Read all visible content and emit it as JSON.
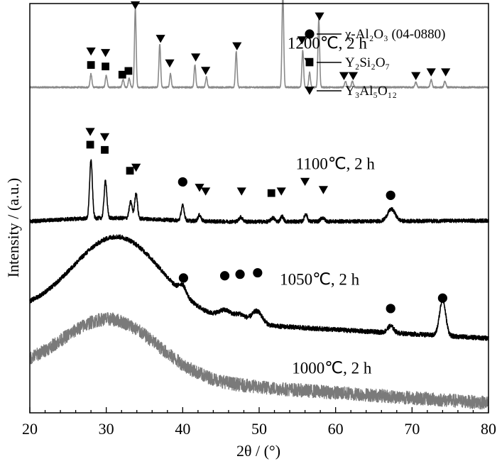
{
  "chart_data": {
    "type": "line",
    "xlabel": "2θ / (°)",
    "ylabel": "Intensity / (a.u.)",
    "xlim": [
      20,
      80
    ],
    "x_ticks": [
      20,
      30,
      40,
      50,
      60,
      70,
      80
    ],
    "y_ticks_shown": false,
    "grid": false,
    "legend_placement": "top-right",
    "legend": [
      {
        "symbol": "circle",
        "label": "χ-Al₂O₃ (04-0880)"
      },
      {
        "symbol": "square",
        "label": "Y₂Si₂O₇"
      },
      {
        "symbol": "triangle-down",
        "label": "Y₃Al₅O₁₂"
      }
    ],
    "series": [
      {
        "name": "1200℃, 2 h",
        "color": "#8a8a8a",
        "offset": 4.18,
        "baseline_level": 0.0,
        "hump": null,
        "noise": 0.01,
        "peaks": [
          {
            "x": 28.0,
            "h": 0.18,
            "w": 0.12
          },
          {
            "x": 30.0,
            "h": 0.16,
            "w": 0.12
          },
          {
            "x": 32.2,
            "h": 0.1,
            "w": 0.12
          },
          {
            "x": 33.0,
            "h": 0.12,
            "w": 0.12
          },
          {
            "x": 33.8,
            "h": 1.05,
            "w": 0.11
          },
          {
            "x": 37.0,
            "h": 0.58,
            "w": 0.11
          },
          {
            "x": 38.4,
            "h": 0.18,
            "w": 0.11
          },
          {
            "x": 41.6,
            "h": 0.3,
            "w": 0.11
          },
          {
            "x": 43.1,
            "h": 0.14,
            "w": 0.11
          },
          {
            "x": 47.0,
            "h": 0.48,
            "w": 0.11
          },
          {
            "x": 53.1,
            "h": 1.3,
            "w": 0.11
          },
          {
            "x": 55.7,
            "h": 0.5,
            "w": 0.11
          },
          {
            "x": 56.6,
            "h": 0.2,
            "w": 0.11
          },
          {
            "x": 57.8,
            "h": 0.92,
            "w": 0.11
          },
          {
            "x": 61.3,
            "h": 0.08,
            "w": 0.12
          },
          {
            "x": 62.2,
            "h": 0.08,
            "w": 0.12
          },
          {
            "x": 70.5,
            "h": 0.07,
            "w": 0.12
          },
          {
            "x": 72.5,
            "h": 0.1,
            "w": 0.12
          },
          {
            "x": 74.3,
            "h": 0.08,
            "w": 0.12
          }
        ],
        "markers": [
          {
            "x": 28.0,
            "symbol": "triangle-down",
            "level": 0.48
          },
          {
            "x": 28.0,
            "symbol": "square",
            "level": 0.3
          },
          {
            "x": 29.9,
            "symbol": "triangle-down",
            "level": 0.46
          },
          {
            "x": 29.9,
            "symbol": "square",
            "level": 0.28
          },
          {
            "x": 32.1,
            "symbol": "square",
            "level": 0.17
          },
          {
            "x": 32.9,
            "symbol": "square",
            "level": 0.22
          },
          {
            "x": 33.8,
            "symbol": "triangle-down",
            "level": 1.1
          },
          {
            "x": 37.1,
            "symbol": "triangle-down",
            "level": 0.65
          },
          {
            "x": 38.3,
            "symbol": "triangle-down",
            "level": 0.32
          },
          {
            "x": 41.7,
            "symbol": "triangle-down",
            "level": 0.4
          },
          {
            "x": 43.0,
            "symbol": "triangle-down",
            "level": 0.22
          },
          {
            "x": 47.1,
            "symbol": "triangle-down",
            "level": 0.55
          },
          {
            "x": 53.1,
            "symbol": "triangle-down",
            "level": 1.23
          },
          {
            "x": 55.6,
            "symbol": "triangle-down",
            "level": 0.63
          },
          {
            "x": 56.5,
            "symbol": "triangle-down",
            "level": 0.34
          },
          {
            "x": 57.9,
            "symbol": "triangle-down",
            "level": 0.95
          },
          {
            "x": 61.1,
            "symbol": "triangle-down",
            "level": 0.15
          },
          {
            "x": 62.3,
            "symbol": "triangle-down",
            "level": 0.15
          },
          {
            "x": 70.5,
            "symbol": "triangle-down",
            "level": 0.15
          },
          {
            "x": 72.5,
            "symbol": "triangle-down",
            "level": 0.2
          },
          {
            "x": 74.4,
            "symbol": "triangle-down",
            "level": 0.2
          }
        ],
        "label_x": 53.7,
        "label_level": 0.52
      },
      {
        "name": "1100℃, 2 h",
        "color": "#000000",
        "offset": 2.36,
        "baseline_level": 0.0,
        "hump": {
          "center": 30,
          "height": 0.06,
          "width": 7
        },
        "slope": 0.03,
        "noise": 0.025,
        "peaks": [
          {
            "x": 28.0,
            "h": 0.78,
            "w": 0.18
          },
          {
            "x": 29.9,
            "h": 0.5,
            "w": 0.18
          },
          {
            "x": 33.2,
            "h": 0.22,
            "w": 0.2
          },
          {
            "x": 33.9,
            "h": 0.34,
            "w": 0.18
          },
          {
            "x": 40.0,
            "h": 0.2,
            "w": 0.2
          },
          {
            "x": 42.2,
            "h": 0.08,
            "w": 0.2
          },
          {
            "x": 47.6,
            "h": 0.06,
            "w": 0.25
          },
          {
            "x": 51.8,
            "h": 0.05,
            "w": 0.25
          },
          {
            "x": 53.0,
            "h": 0.07,
            "w": 0.2
          },
          {
            "x": 56.1,
            "h": 0.1,
            "w": 0.2
          },
          {
            "x": 58.3,
            "h": 0.05,
            "w": 0.25
          },
          {
            "x": 67.3,
            "h": 0.16,
            "w": 0.5
          }
        ],
        "markers": [
          {
            "x": 27.9,
            "symbol": "triangle-down",
            "level": 1.22
          },
          {
            "x": 27.9,
            "symbol": "square",
            "level": 1.05
          },
          {
            "x": 29.8,
            "symbol": "triangle-down",
            "level": 1.15
          },
          {
            "x": 29.8,
            "symbol": "square",
            "level": 0.98
          },
          {
            "x": 33.1,
            "symbol": "square",
            "level": 0.7
          },
          {
            "x": 33.9,
            "symbol": "triangle-down",
            "level": 0.74
          },
          {
            "x": 40.0,
            "symbol": "circle",
            "level": 0.55
          },
          {
            "x": 42.2,
            "symbol": "triangle-down",
            "level": 0.47
          },
          {
            "x": 43.0,
            "symbol": "triangle-down",
            "level": 0.42
          },
          {
            "x": 47.7,
            "symbol": "triangle-down",
            "level": 0.42
          },
          {
            "x": 51.6,
            "symbol": "square",
            "level": 0.4
          },
          {
            "x": 52.9,
            "symbol": "triangle-down",
            "level": 0.42
          },
          {
            "x": 56.0,
            "symbol": "triangle-down",
            "level": 0.55
          },
          {
            "x": 58.4,
            "symbol": "triangle-down",
            "level": 0.44
          },
          {
            "x": 67.2,
            "symbol": "circle",
            "level": 0.37
          }
        ],
        "label_x": 54.8,
        "label_level": 0.72
      },
      {
        "name": "1050℃, 2 h",
        "color": "#000000",
        "offset": 1.16,
        "baseline_level": 0.0,
        "hump": {
          "center": 31.5,
          "height": 1.08,
          "width": 5.8
        },
        "slope": -0.35,
        "noise": 0.03,
        "peaks": [
          {
            "x": 40.0,
            "h": 0.12,
            "w": 0.45
          },
          {
            "x": 45.6,
            "h": 0.12,
            "w": 0.9
          },
          {
            "x": 47.6,
            "h": 0.1,
            "w": 0.7
          },
          {
            "x": 49.7,
            "h": 0.18,
            "w": 0.7
          },
          {
            "x": 67.2,
            "h": 0.09,
            "w": 0.4
          },
          {
            "x": 74.0,
            "h": 0.48,
            "w": 0.4
          }
        ],
        "markers": [
          {
            "x": 40.1,
            "symbol": "circle",
            "level": 0.46
          },
          {
            "x": 45.5,
            "symbol": "circle",
            "level": 0.49
          },
          {
            "x": 47.5,
            "symbol": "circle",
            "level": 0.51
          },
          {
            "x": 49.8,
            "symbol": "circle",
            "level": 0.53
          },
          {
            "x": 67.2,
            "symbol": "circle",
            "level": 0.05
          },
          {
            "x": 74.0,
            "symbol": "circle",
            "level": 0.19
          }
        ],
        "label_x": 52.7,
        "label_level": 0.37
      },
      {
        "name": "1000℃, 2 h",
        "color": "#7a7a7a",
        "offset": 0.0,
        "baseline_level": 0.36,
        "hump": {
          "center": 30.5,
          "height": 0.78,
          "width": 6.2
        },
        "slope": -0.42,
        "noise": 0.09,
        "peaks": [],
        "markers": [],
        "label_x": 54.3,
        "label_level": 0.34
      }
    ]
  }
}
